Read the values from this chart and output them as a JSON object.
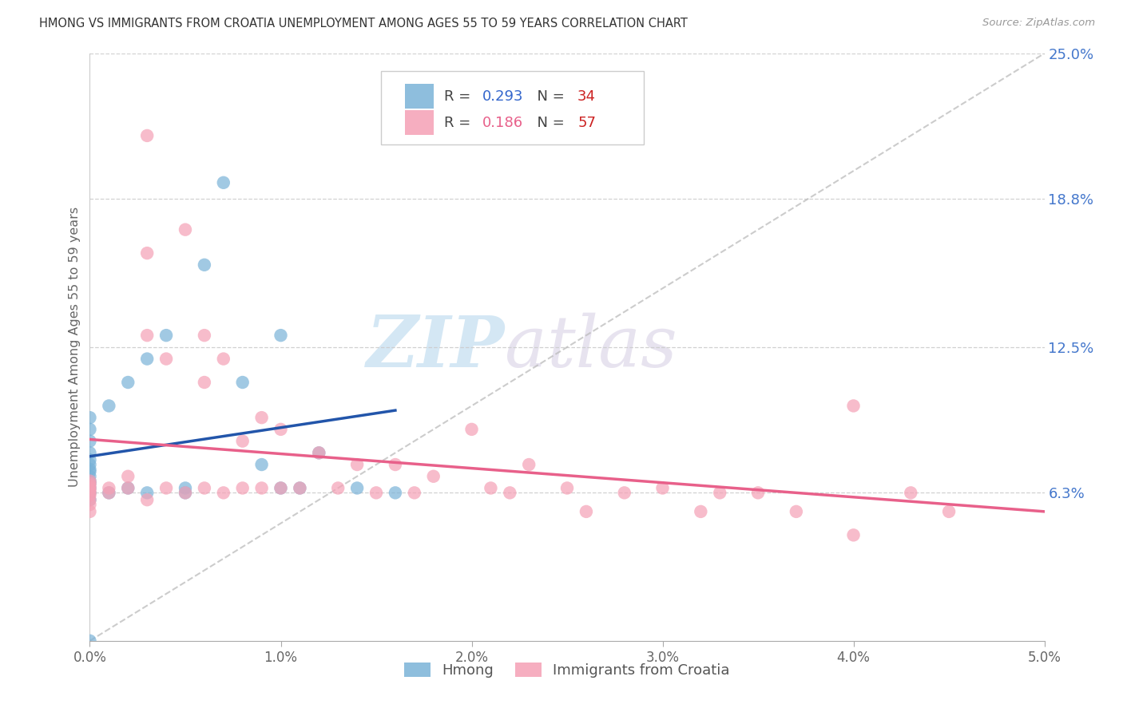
{
  "title": "HMONG VS IMMIGRANTS FROM CROATIA UNEMPLOYMENT AMONG AGES 55 TO 59 YEARS CORRELATION CHART",
  "source": "Source: ZipAtlas.com",
  "ylabel": "Unemployment Among Ages 55 to 59 years",
  "xlim": [
    0.0,
    0.05
  ],
  "ylim": [
    0.0,
    0.25
  ],
  "xtick_labels": [
    "0.0%",
    "1.0%",
    "2.0%",
    "3.0%",
    "4.0%",
    "5.0%"
  ],
  "xtick_vals": [
    0.0,
    0.01,
    0.02,
    0.03,
    0.04,
    0.05
  ],
  "ytick_right_labels": [
    "6.3%",
    "12.5%",
    "18.8%",
    "25.0%"
  ],
  "ytick_right_vals": [
    0.063,
    0.125,
    0.188,
    0.25
  ],
  "watermark_zip": "ZIP",
  "watermark_atlas": "atlas",
  "blue_scatter_color": "#7ab3d8",
  "pink_scatter_color": "#f5a0b5",
  "blue_line_color": "#2255aa",
  "pink_line_color": "#e8608a",
  "diag_line_color": "#bbbbbb",
  "r_blue": "0.293",
  "n_blue": "34",
  "r_pink": "0.186",
  "n_pink": "57",
  "legend_label_blue": "Hmong",
  "legend_label_pink": "Immigrants from Croatia",
  "hmong_x": [
    0.0,
    0.0,
    0.0,
    0.0,
    0.0,
    0.0,
    0.0,
    0.0,
    0.0,
    0.0,
    0.0,
    0.0,
    0.0,
    0.0,
    0.001,
    0.001,
    0.002,
    0.002,
    0.003,
    0.003,
    0.004,
    0.005,
    0.005,
    0.006,
    0.007,
    0.008,
    0.009,
    0.01,
    0.01,
    0.011,
    0.012,
    0.014,
    0.016,
    0.0
  ],
  "hmong_y": [
    0.06,
    0.063,
    0.065,
    0.067,
    0.068,
    0.07,
    0.072,
    0.073,
    0.075,
    0.077,
    0.08,
    0.085,
    0.09,
    0.095,
    0.063,
    0.1,
    0.065,
    0.11,
    0.063,
    0.12,
    0.13,
    0.065,
    0.063,
    0.16,
    0.195,
    0.11,
    0.075,
    0.065,
    0.13,
    0.065,
    0.08,
    0.065,
    0.063,
    0.0
  ],
  "croatia_x": [
    0.0,
    0.0,
    0.0,
    0.0,
    0.0,
    0.0,
    0.0,
    0.0,
    0.0,
    0.0,
    0.001,
    0.001,
    0.002,
    0.002,
    0.003,
    0.003,
    0.003,
    0.004,
    0.004,
    0.005,
    0.005,
    0.006,
    0.006,
    0.006,
    0.007,
    0.007,
    0.008,
    0.008,
    0.009,
    0.009,
    0.01,
    0.01,
    0.011,
    0.012,
    0.013,
    0.014,
    0.015,
    0.016,
    0.017,
    0.018,
    0.02,
    0.021,
    0.022,
    0.023,
    0.025,
    0.026,
    0.028,
    0.03,
    0.032,
    0.033,
    0.035,
    0.037,
    0.04,
    0.043,
    0.045,
    0.04,
    0.003
  ],
  "croatia_y": [
    0.055,
    0.058,
    0.06,
    0.062,
    0.063,
    0.064,
    0.065,
    0.066,
    0.067,
    0.068,
    0.063,
    0.065,
    0.065,
    0.07,
    0.06,
    0.13,
    0.165,
    0.065,
    0.12,
    0.063,
    0.175,
    0.065,
    0.11,
    0.13,
    0.063,
    0.12,
    0.065,
    0.085,
    0.065,
    0.095,
    0.065,
    0.09,
    0.065,
    0.08,
    0.065,
    0.075,
    0.063,
    0.075,
    0.063,
    0.07,
    0.09,
    0.065,
    0.063,
    0.075,
    0.065,
    0.055,
    0.063,
    0.065,
    0.055,
    0.063,
    0.063,
    0.055,
    0.045,
    0.063,
    0.055,
    0.1,
    0.215
  ]
}
